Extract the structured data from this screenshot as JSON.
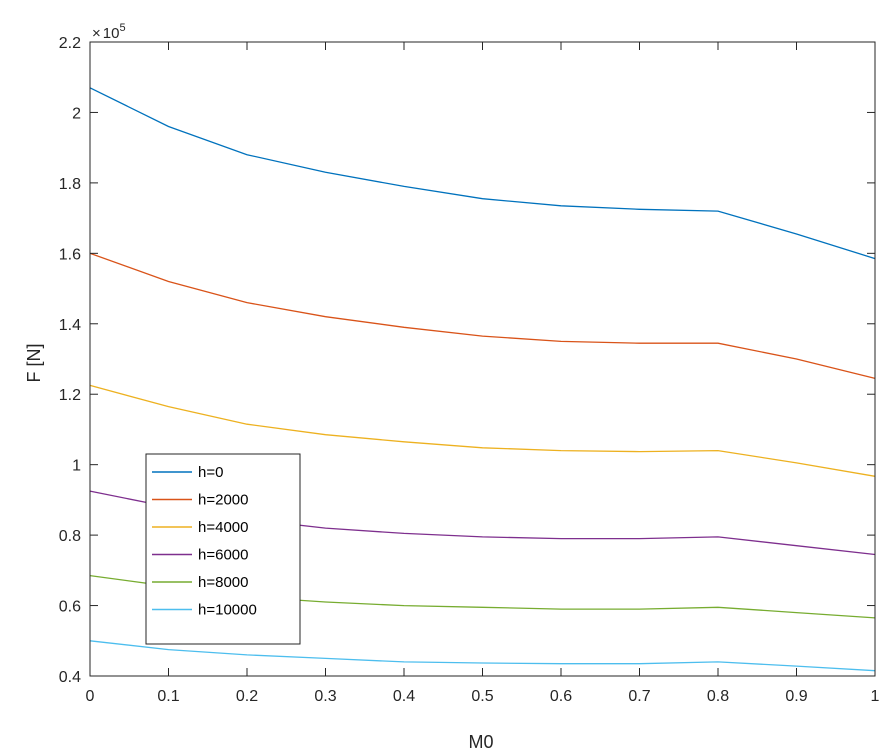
{
  "chart_data": {
    "type": "line",
    "title": "",
    "xlabel": "M0",
    "ylabel": "F [N]",
    "xlim": [
      0,
      1
    ],
    "ylim": [
      0.4,
      2.2
    ],
    "y_multiplier": {
      "times": "×",
      "base": "10",
      "exponent": "5"
    },
    "x_ticks": [
      "0",
      "0.1",
      "0.2",
      "0.3",
      "0.4",
      "0.5",
      "0.6",
      "0.7",
      "0.8",
      "0.9",
      "1"
    ],
    "y_ticks": [
      "0.4",
      "0.6",
      "0.8",
      "1",
      "1.2",
      "1.4",
      "1.6",
      "1.8",
      "2",
      "2.2"
    ],
    "grid": false,
    "legend_position": "bottom-left",
    "x": [
      0,
      0.1,
      0.2,
      0.3,
      0.4,
      0.5,
      0.6,
      0.7,
      0.8,
      0.9,
      1.0
    ],
    "series": [
      {
        "name": "h=0",
        "color": "#0072BD",
        "values": [
          2.07,
          1.96,
          1.88,
          1.83,
          1.79,
          1.755,
          1.735,
          1.725,
          1.72,
          1.655,
          1.585
        ]
      },
      {
        "name": "h=2000",
        "color": "#D95319",
        "values": [
          1.6,
          1.52,
          1.46,
          1.42,
          1.39,
          1.365,
          1.35,
          1.345,
          1.345,
          1.3,
          1.245
        ]
      },
      {
        "name": "h=4000",
        "color": "#EDB120",
        "values": [
          1.225,
          1.165,
          1.115,
          1.085,
          1.065,
          1.048,
          1.04,
          1.037,
          1.04,
          1.005,
          0.967
        ]
      },
      {
        "name": "h=6000",
        "color": "#7E2F8E",
        "values": [
          0.925,
          0.88,
          0.845,
          0.82,
          0.805,
          0.795,
          0.79,
          0.79,
          0.795,
          0.77,
          0.745
        ]
      },
      {
        "name": "h=8000",
        "color": "#77AC30",
        "values": [
          0.685,
          0.655,
          0.625,
          0.61,
          0.6,
          0.595,
          0.59,
          0.59,
          0.595,
          0.58,
          0.565
        ]
      },
      {
        "name": "h=10000",
        "color": "#4DBEEE",
        "values": [
          0.5,
          0.475,
          0.46,
          0.45,
          0.44,
          0.437,
          0.435,
          0.435,
          0.44,
          0.428,
          0.415
        ]
      }
    ]
  }
}
